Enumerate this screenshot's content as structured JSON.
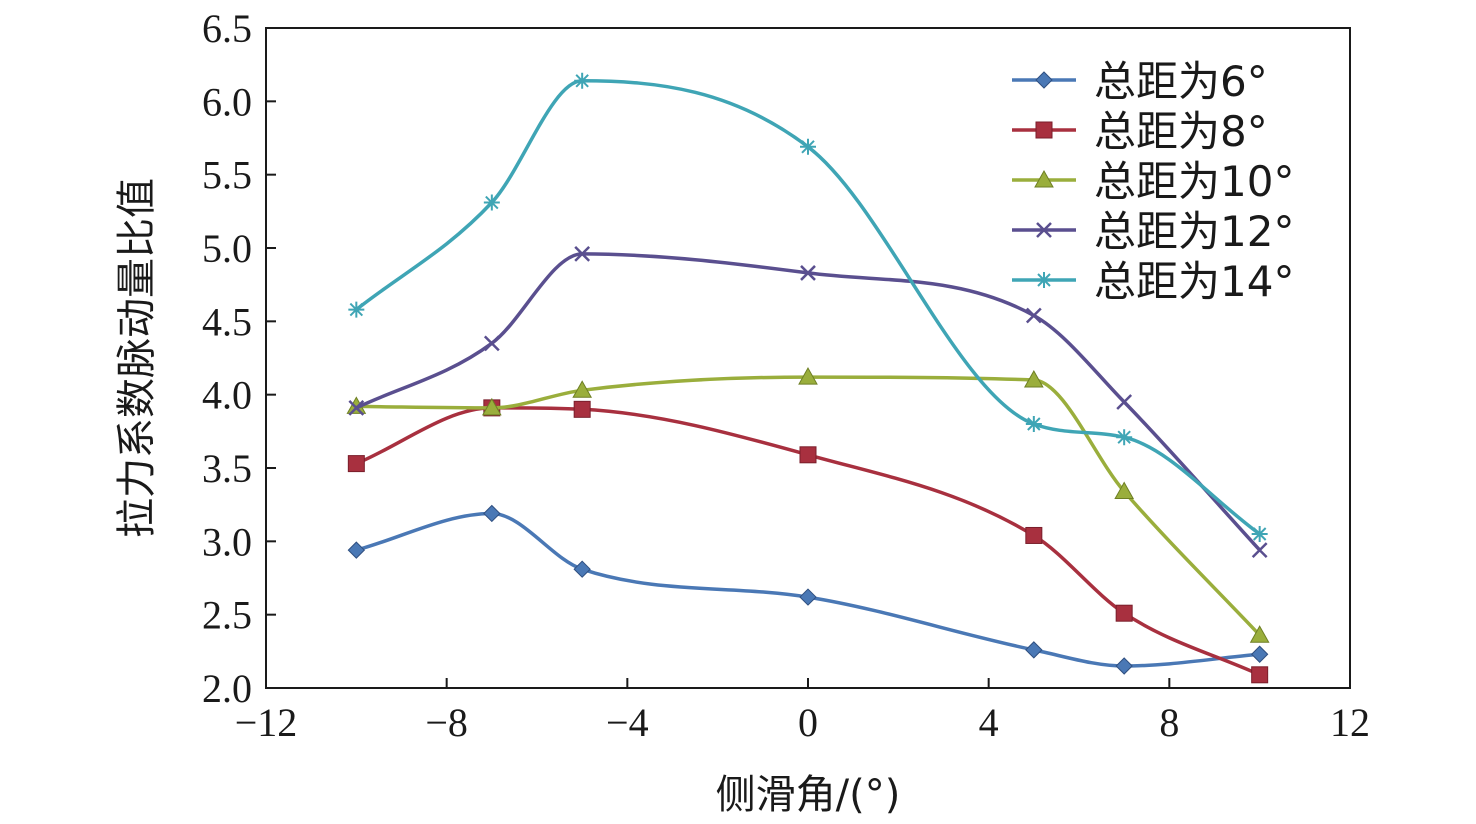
{
  "chart_data": {
    "type": "line",
    "xlabel": "侧滑角/(°)",
    "ylabel": "拉力系数脉动量比值",
    "xlim": [
      -12,
      12
    ],
    "ylim": [
      2.0,
      6.5
    ],
    "xticks": [
      -12,
      -8,
      -4,
      0,
      4,
      8,
      12
    ],
    "xtick_labels": [
      "−12",
      "−8",
      "−4",
      "0",
      "4",
      "8",
      "12"
    ],
    "yticks": [
      2.0,
      2.5,
      3.0,
      3.5,
      4.0,
      4.5,
      5.0,
      5.5,
      6.0,
      6.5
    ],
    "ytick_labels": [
      "2.0",
      "2.5",
      "3.0",
      "3.5",
      "4.0",
      "4.5",
      "5.0",
      "5.5",
      "6.0",
      "6.5"
    ],
    "grid": false,
    "legend_position": "top-right",
    "x": [
      -10,
      -7,
      -5,
      0,
      5,
      7,
      10
    ],
    "series": [
      {
        "name": "总距为6°",
        "marker": "diamond",
        "color": "#4a78b5",
        "values": [
          2.94,
          3.19,
          2.81,
          2.62,
          2.26,
          2.15,
          2.23
        ]
      },
      {
        "name": "总距为8°",
        "marker": "square",
        "color": "#a8303f",
        "values": [
          3.53,
          3.91,
          3.9,
          3.59,
          3.04,
          2.51,
          2.09
        ]
      },
      {
        "name": "总距为10°",
        "marker": "triangle",
        "color": "#9aae3c",
        "values": [
          3.92,
          3.91,
          4.03,
          4.12,
          4.1,
          3.34,
          2.36
        ]
      },
      {
        "name": "总距为12°",
        "marker": "x",
        "color": "#5a4f8f",
        "values": [
          3.91,
          4.35,
          4.96,
          4.83,
          4.54,
          3.95,
          2.94
        ]
      },
      {
        "name": "总距为14°",
        "marker": "star",
        "color": "#3fa5b5",
        "values": [
          4.58,
          5.31,
          6.14,
          5.69,
          3.8,
          3.71,
          3.05
        ]
      }
    ]
  }
}
